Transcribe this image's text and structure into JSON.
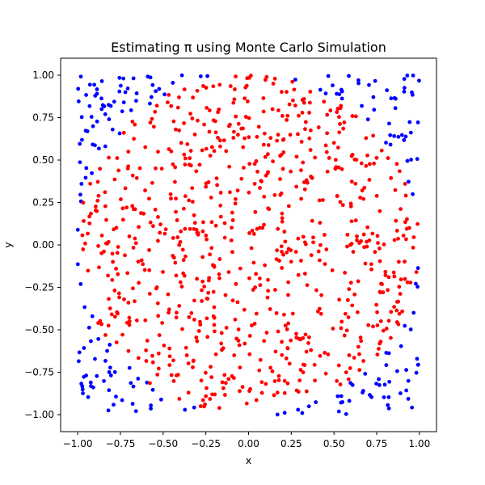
{
  "chart_data": {
    "type": "scatter",
    "title": "Estimating π using Monte Carlo Simulation",
    "xlabel": "x",
    "ylabel": "y",
    "xlim": [
      -1.1,
      1.1
    ],
    "ylim": [
      -1.1,
      1.1
    ],
    "xticks": [
      "−1.00",
      "−0.75",
      "−0.50",
      "−0.25",
      "0.00",
      "0.25",
      "0.50",
      "0.75",
      "1.00"
    ],
    "yticks": [
      "−1.00",
      "−0.75",
      "−0.50",
      "−0.25",
      "0.00",
      "0.25",
      "0.50",
      "0.75",
      "1.00"
    ],
    "grid": false,
    "sample_points": 1000,
    "inside_color": "#ff0000",
    "outside_color": "#0000ff",
    "series": [
      {
        "color": "#ff0000",
        "rule": "x^2 + y^2 <= 1",
        "points_sample": [
          [
            0.0,
            0.0
          ],
          [
            0.3,
            0.5
          ],
          [
            -0.4,
            -0.6
          ],
          [
            0.7,
            0.2
          ],
          [
            -0.2,
            0.8
          ]
        ]
      },
      {
        "color": "#0000ff",
        "rule": "x^2 + y^2 > 1",
        "points_sample": [
          [
            -0.95,
            0.93
          ],
          [
            0.9,
            0.92
          ],
          [
            -0.9,
            -0.9
          ],
          [
            0.95,
            -0.95
          ],
          [
            -0.98,
            -0.5
          ]
        ]
      }
    ]
  }
}
